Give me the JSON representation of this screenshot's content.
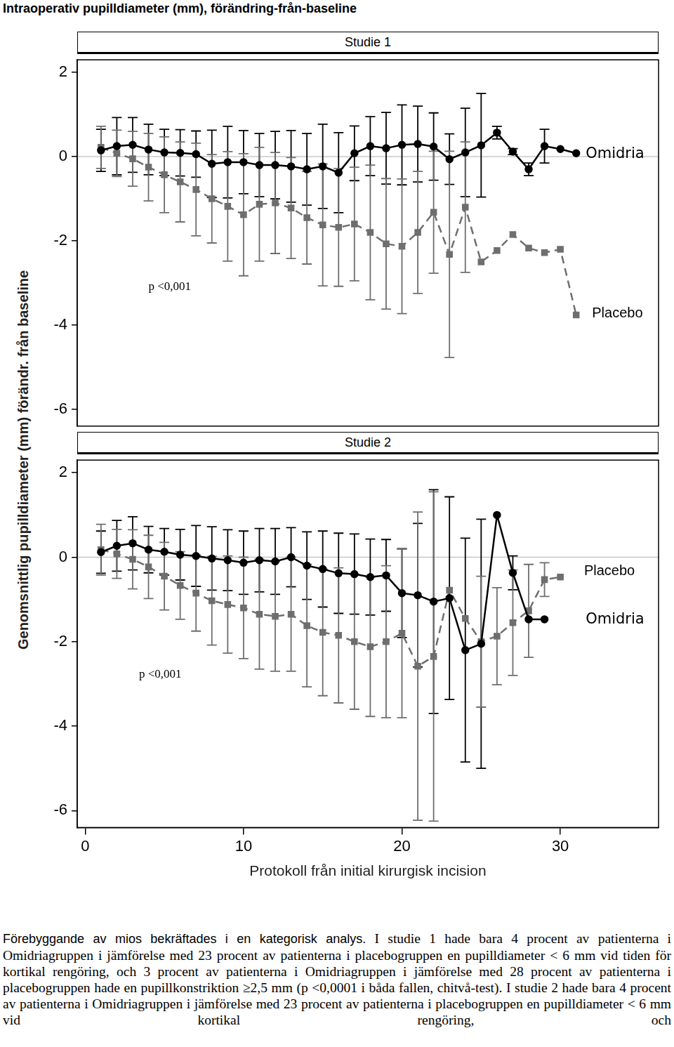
{
  "page": {
    "title": "Intraoperativ pupilldiameter (mm), förändring-från-baseline",
    "lead": "Förebyggande av mios bekräftades i en kategorisk analys.",
    "body": "I studie 1 hade bara 4 procent av patienterna i Omidriagruppen i jämförelse med 23 procent av patienterna i placebogruppen en pupilldiameter < 6 mm vid tiden för kortikal rengöring, och 3 procent av patienterna i Omidriagruppen i jämförelse med 28 procent av patienterna i placebogruppen hade en pupillkonstriktion ≥2,5 mm (p <0,0001 i båda fallen, chitvå-test). I studie 2 hade bara 4 procent av patienterna i Omidriagruppen i jämförelse med 23 procent av patienterna i placebogruppen en pupilldiameter < 6 mm vid kortikal rengöring, och"
  },
  "chart_data": [
    {
      "type": "line",
      "title": "Studie 1",
      "y_label": "Genomsnittlig pupilldiameter (mm) förändr. från baseline",
      "x": [
        1,
        2,
        3,
        4,
        5,
        6,
        7,
        8,
        9,
        10,
        11,
        12,
        13,
        14,
        15,
        16,
        17,
        18,
        19,
        20,
        21,
        22,
        23,
        24,
        25,
        26,
        27,
        28,
        29,
        30,
        31
      ],
      "xlim": [
        -0.5,
        36.2
      ],
      "ylim": [
        -6.4,
        2.3
      ],
      "yticks": [
        -6,
        -4,
        -2,
        0,
        2
      ],
      "tick_labels": "y",
      "grid": false,
      "reference_lines": [
        0
      ],
      "annotations": [
        {
          "text": "p <0,001",
          "x": 4.0,
          "y": -3.1
        }
      ],
      "series": [
        {
          "name": "Omidria",
          "color": "#000000",
          "marker": "circle",
          "line_style": "solid",
          "label_position": [
            31.6,
            0.06
          ],
          "values": [
            0.15,
            0.25,
            0.28,
            0.17,
            0.1,
            0.09,
            0.06,
            -0.17,
            -0.13,
            -0.13,
            -0.2,
            -0.2,
            -0.23,
            -0.3,
            -0.23,
            -0.38,
            0.08,
            0.25,
            0.2,
            0.28,
            0.3,
            0.24,
            -0.06,
            0.1,
            0.27,
            0.57,
            0.12,
            -0.3,
            0.25,
            0.18,
            0.08
          ],
          "errors": [
            0.5,
            0.68,
            0.65,
            0.6,
            0.55,
            0.55,
            0.55,
            0.8,
            0.85,
            0.75,
            0.75,
            0.8,
            0.85,
            0.85,
            1.0,
            0.95,
            0.65,
            0.7,
            0.85,
            0.95,
            0.9,
            0.8,
            0.6,
            1.05,
            1.23,
            0.15,
            0.07,
            0.15,
            0.4,
            null,
            null
          ]
        },
        {
          "name": "Placebo",
          "color": "#6e6e6e",
          "marker": "square",
          "line_style": "dashed",
          "label_position": [
            32.0,
            -3.73
          ],
          "values": [
            0.22,
            0.08,
            -0.05,
            -0.25,
            -0.43,
            -0.6,
            -0.78,
            -1.0,
            -1.18,
            -1.38,
            -1.13,
            -1.1,
            -1.22,
            -1.45,
            -1.62,
            -1.68,
            -1.6,
            -1.8,
            -2.07,
            -2.13,
            -1.8,
            -1.32,
            -2.32,
            -1.2,
            -2.5,
            -2.23,
            -1.85,
            -2.17,
            -2.28,
            -2.2,
            -3.76
          ],
          "errors": [
            0.5,
            0.55,
            0.65,
            0.8,
            0.9,
            0.95,
            1.1,
            1.05,
            1.3,
            1.45,
            1.35,
            1.2,
            1.2,
            1.1,
            1.45,
            1.4,
            1.35,
            1.6,
            1.55,
            1.6,
            1.45,
            1.45,
            2.45,
            1.55,
            null,
            null,
            null,
            null,
            null,
            null,
            null
          ]
        }
      ]
    },
    {
      "type": "line",
      "title": "Studie 2",
      "x_label": "Protokoll från initial kirurgisk incision",
      "x": [
        1,
        2,
        3,
        4,
        5,
        6,
        7,
        8,
        9,
        10,
        11,
        12,
        13,
        14,
        15,
        16,
        17,
        18,
        19,
        20,
        21,
        22,
        23,
        24,
        25,
        26,
        27,
        28,
        29,
        30
      ],
      "xlim": [
        -0.5,
        36.2
      ],
      "xticks": [
        0,
        10,
        20,
        30
      ],
      "ylim": [
        -6.4,
        2.3
      ],
      "yticks": [
        -6,
        -4,
        -2,
        0,
        2
      ],
      "grid": false,
      "reference_lines": [
        0
      ],
      "annotations": [
        {
          "text": "p <0,001",
          "x": 3.4,
          "y": -2.77
        }
      ],
      "series": [
        {
          "name": "Omidria",
          "color": "#000000",
          "marker": "circle",
          "line_style": "solid",
          "label_position": [
            31.6,
            -1.48
          ],
          "values": [
            0.12,
            0.27,
            0.33,
            0.18,
            0.13,
            0.06,
            0.03,
            -0.03,
            -0.07,
            -0.13,
            -0.07,
            -0.1,
            0.0,
            -0.2,
            -0.28,
            -0.38,
            -0.4,
            -0.47,
            -0.43,
            -0.85,
            -0.9,
            -1.05,
            -0.97,
            -2.2,
            -2.05,
            1.0,
            -0.37,
            -1.47,
            -1.47,
            null
          ],
          "errors": [
            0.5,
            0.6,
            0.63,
            0.55,
            0.55,
            0.6,
            0.72,
            0.75,
            0.72,
            0.75,
            0.75,
            0.78,
            0.7,
            0.8,
            0.9,
            0.95,
            0.95,
            0.9,
            0.85,
            1.05,
            1.7,
            2.65,
            2.4,
            2.65,
            2.95,
            null,
            0.4,
            null,
            null,
            null
          ]
        },
        {
          "name": "Placebo",
          "color": "#6e6e6e",
          "marker": "square",
          "line_style": "dashed",
          "label_position": [
            31.5,
            -0.34
          ],
          "values": [
            0.18,
            0.08,
            -0.05,
            -0.23,
            -0.45,
            -0.67,
            -0.85,
            -1.03,
            -1.12,
            -1.2,
            -1.35,
            -1.4,
            -1.35,
            -1.62,
            -1.78,
            -1.85,
            -2.0,
            -2.12,
            -2.0,
            -1.8,
            -2.58,
            -2.35,
            -0.78,
            -1.45,
            -2.0,
            -1.87,
            -1.55,
            -1.27,
            -0.53,
            -0.47
          ],
          "errors": [
            0.6,
            0.58,
            0.7,
            0.75,
            0.8,
            0.8,
            0.9,
            1.05,
            1.15,
            1.2,
            1.3,
            1.3,
            1.35,
            1.45,
            1.5,
            1.6,
            1.6,
            1.65,
            1.8,
            2.0,
            3.65,
            3.9,
            null,
            null,
            1.55,
            1.15,
            1.25,
            1.1,
            0.4,
            null
          ]
        }
      ]
    }
  ]
}
